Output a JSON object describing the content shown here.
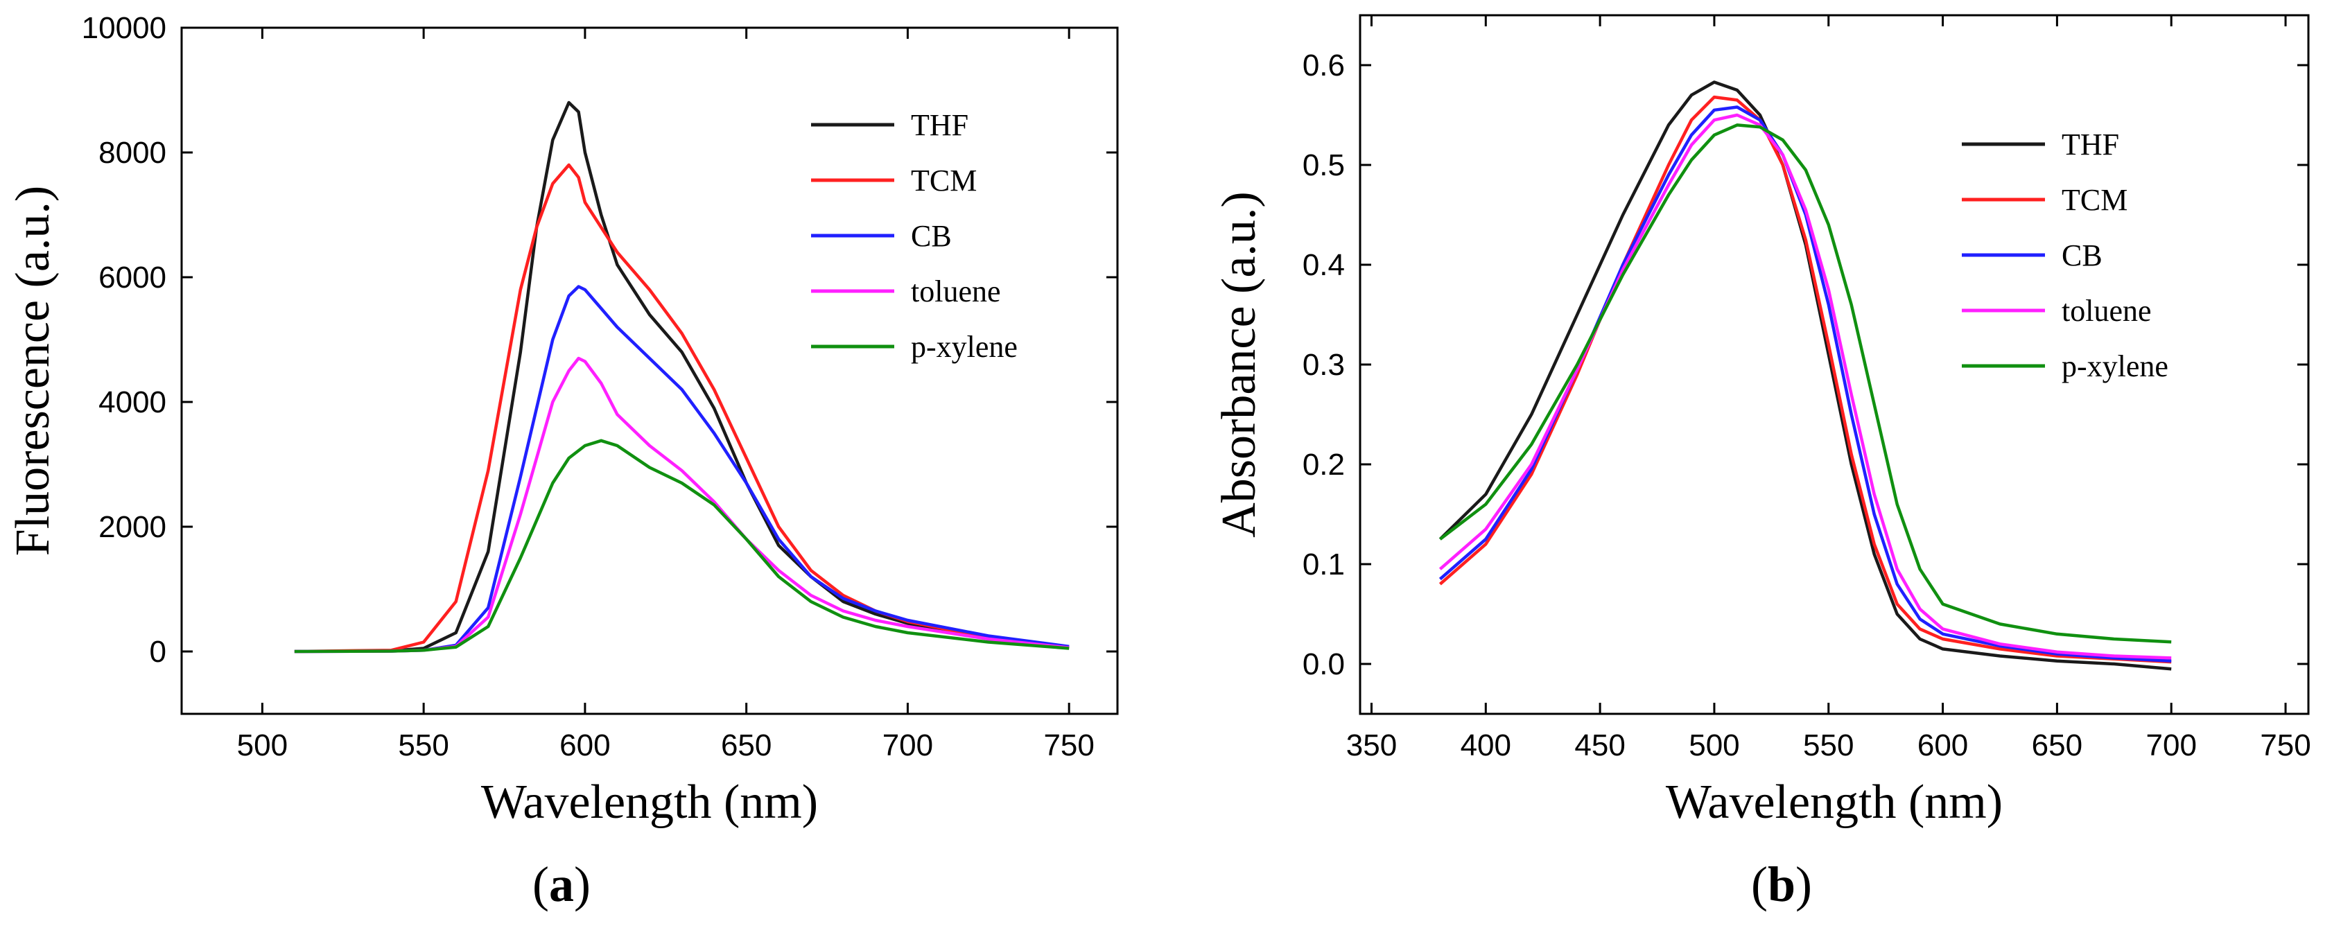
{
  "figure": {
    "panel_a_label": {
      "open": "(",
      "letter": "a",
      "close": ")"
    },
    "panel_b_label": {
      "open": "(",
      "letter": "b",
      "close": ")"
    }
  },
  "chart_data": [
    {
      "id": "a",
      "type": "line",
      "title": "",
      "xlabel": "Wavelength (nm)",
      "ylabel": "Fluorescence (a.u.)",
      "xlim": [
        475,
        765
      ],
      "ylim": [
        -1000,
        10000
      ],
      "xticks": [
        500,
        550,
        600,
        650,
        700,
        750
      ],
      "yticks": [
        0,
        2000,
        4000,
        6000,
        8000,
        10000
      ],
      "xtick_labels": [
        "500",
        "550",
        "600",
        "650",
        "700",
        "750"
      ],
      "ytick_labels": [
        "0",
        "2000",
        "4000",
        "6000",
        "8000",
        "10000"
      ],
      "grid": false,
      "legend_position": "top-right",
      "series": [
        {
          "name": "THF",
          "color": "#1a1a1a",
          "x": [
            510,
            540,
            550,
            560,
            570,
            580,
            585,
            590,
            595,
            598,
            600,
            605,
            610,
            620,
            630,
            640,
            650,
            660,
            670,
            680,
            690,
            700,
            725,
            750
          ],
          "y": [
            0,
            10,
            50,
            300,
            1600,
            4800,
            6800,
            8200,
            8800,
            8650,
            8000,
            7000,
            6200,
            5400,
            4800,
            3900,
            2700,
            1700,
            1200,
            800,
            600,
            450,
            200,
            60
          ]
        },
        {
          "name": "TCM",
          "color": "#ff2020",
          "x": [
            510,
            540,
            550,
            560,
            570,
            580,
            585,
            590,
            595,
            598,
            600,
            605,
            610,
            620,
            630,
            640,
            650,
            660,
            670,
            680,
            690,
            700,
            725,
            750
          ],
          "y": [
            0,
            20,
            150,
            800,
            2900,
            5800,
            6800,
            7500,
            7800,
            7600,
            7200,
            6800,
            6400,
            5800,
            5100,
            4200,
            3100,
            2000,
            1300,
            900,
            650,
            480,
            220,
            60
          ]
        },
        {
          "name": "CB",
          "color": "#2020ff",
          "x": [
            510,
            540,
            550,
            560,
            570,
            580,
            590,
            595,
            598,
            600,
            605,
            610,
            620,
            630,
            640,
            650,
            660,
            670,
            680,
            690,
            700,
            725,
            750
          ],
          "y": [
            0,
            5,
            20,
            100,
            700,
            2800,
            5000,
            5700,
            5850,
            5800,
            5500,
            5200,
            4700,
            4200,
            3500,
            2700,
            1800,
            1200,
            850,
            650,
            500,
            250,
            80
          ]
        },
        {
          "name": "toluene",
          "color": "#ff20ff",
          "x": [
            510,
            540,
            550,
            560,
            570,
            580,
            590,
            595,
            598,
            600,
            605,
            610,
            620,
            630,
            640,
            650,
            660,
            670,
            680,
            690,
            700,
            725,
            750
          ],
          "y": [
            0,
            5,
            20,
            80,
            550,
            2200,
            4000,
            4500,
            4700,
            4650,
            4300,
            3800,
            3300,
            2900,
            2400,
            1800,
            1300,
            900,
            650,
            500,
            400,
            200,
            60
          ]
        },
        {
          "name": "p-xylene",
          "color": "#109010",
          "x": [
            510,
            540,
            550,
            560,
            570,
            580,
            590,
            595,
            600,
            605,
            610,
            620,
            630,
            640,
            650,
            660,
            670,
            680,
            690,
            700,
            725,
            750
          ],
          "y": [
            0,
            5,
            20,
            70,
            400,
            1500,
            2700,
            3100,
            3300,
            3380,
            3300,
            2950,
            2700,
            2350,
            1800,
            1200,
            800,
            550,
            400,
            300,
            150,
            50
          ]
        }
      ]
    },
    {
      "id": "b",
      "type": "line",
      "title": "",
      "xlabel": "Wavelength (nm)",
      "ylabel": "Absorbance (a.u.)",
      "xlim": [
        345,
        760
      ],
      "ylim": [
        -0.05,
        0.65
      ],
      "xticks": [
        350,
        400,
        450,
        500,
        550,
        600,
        650,
        700,
        750
      ],
      "yticks": [
        0.0,
        0.1,
        0.2,
        0.3,
        0.4,
        0.5,
        0.6
      ],
      "xtick_labels": [
        "350",
        "400",
        "450",
        "500",
        "550",
        "600",
        "650",
        "700",
        "750"
      ],
      "ytick_labels": [
        "0.0",
        "0.1",
        "0.2",
        "0.3",
        "0.4",
        "0.5",
        "0.6"
      ],
      "grid": false,
      "legend_position": "top-right",
      "series": [
        {
          "name": "THF",
          "color": "#1a1a1a",
          "x": [
            380,
            400,
            420,
            440,
            460,
            480,
            490,
            500,
            510,
            520,
            530,
            540,
            550,
            560,
            570,
            580,
            590,
            600,
            625,
            650,
            675,
            700
          ],
          "y": [
            0.125,
            0.17,
            0.25,
            0.35,
            0.45,
            0.54,
            0.57,
            0.583,
            0.575,
            0.55,
            0.5,
            0.42,
            0.31,
            0.2,
            0.11,
            0.05,
            0.025,
            0.015,
            0.008,
            0.003,
            0.0,
            -0.005
          ]
        },
        {
          "name": "TCM",
          "color": "#ff2020",
          "x": [
            380,
            400,
            420,
            440,
            460,
            480,
            490,
            500,
            510,
            520,
            530,
            540,
            550,
            560,
            570,
            580,
            590,
            600,
            625,
            650,
            675,
            700
          ],
          "y": [
            0.08,
            0.12,
            0.19,
            0.29,
            0.4,
            0.5,
            0.545,
            0.568,
            0.565,
            0.545,
            0.5,
            0.425,
            0.32,
            0.21,
            0.12,
            0.06,
            0.035,
            0.025,
            0.015,
            0.008,
            0.005,
            0.002
          ]
        },
        {
          "name": "CB",
          "color": "#2020ff",
          "x": [
            380,
            400,
            420,
            440,
            460,
            480,
            490,
            500,
            510,
            520,
            530,
            540,
            550,
            560,
            570,
            580,
            590,
            600,
            625,
            650,
            675,
            700
          ],
          "y": [
            0.085,
            0.125,
            0.195,
            0.295,
            0.4,
            0.49,
            0.53,
            0.555,
            0.558,
            0.545,
            0.51,
            0.45,
            0.36,
            0.25,
            0.15,
            0.08,
            0.045,
            0.03,
            0.018,
            0.01,
            0.006,
            0.003
          ]
        },
        {
          "name": "toluene",
          "color": "#ff20ff",
          "x": [
            380,
            400,
            420,
            440,
            460,
            480,
            490,
            500,
            510,
            520,
            530,
            540,
            550,
            560,
            570,
            580,
            590,
            600,
            625,
            650,
            675,
            700
          ],
          "y": [
            0.095,
            0.135,
            0.2,
            0.295,
            0.395,
            0.48,
            0.52,
            0.545,
            0.55,
            0.54,
            0.51,
            0.455,
            0.375,
            0.27,
            0.17,
            0.095,
            0.055,
            0.035,
            0.02,
            0.012,
            0.008,
            0.006
          ]
        },
        {
          "name": "p-xylene",
          "color": "#109010",
          "x": [
            380,
            400,
            420,
            440,
            460,
            480,
            490,
            500,
            510,
            520,
            530,
            540,
            550,
            560,
            570,
            580,
            590,
            600,
            625,
            650,
            675,
            700
          ],
          "y": [
            0.125,
            0.16,
            0.22,
            0.3,
            0.39,
            0.47,
            0.505,
            0.53,
            0.54,
            0.538,
            0.525,
            0.495,
            0.44,
            0.36,
            0.26,
            0.16,
            0.095,
            0.06,
            0.04,
            0.03,
            0.025,
            0.022
          ]
        }
      ]
    }
  ]
}
